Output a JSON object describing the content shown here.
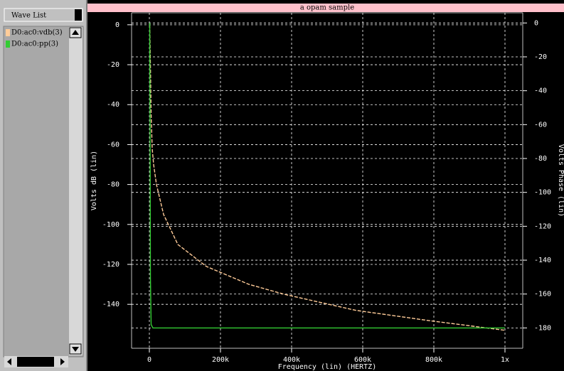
{
  "wave_list": {
    "title": "Wave List"
  },
  "chart_data": {
    "type": "line",
    "title": "a opam sample",
    "x_label": "Frequency (lin) (HERTZ)",
    "y_label": "Volts dB (lin)",
    "y2_label": "Volts Phase (lin)",
    "xlim": [
      -50000,
      1050000
    ],
    "xticks": [
      0,
      {
        "value": 200000,
        "label": "200k"
      },
      {
        "value": 400000,
        "label": "400k"
      },
      {
        "value": 600000,
        "label": "600k"
      },
      {
        "value": 800000,
        "label": "800k"
      },
      {
        "value": 1000000,
        "label": "1x"
      }
    ],
    "ylim": [
      -162,
      6
    ],
    "yticks": [
      0,
      -20,
      -40,
      -60,
      -80,
      -100,
      -120,
      -140
    ],
    "y2lim": [
      -192,
      6
    ],
    "y2ticks": [
      0,
      -20,
      -40,
      -60,
      -80,
      -100,
      -120,
      -140,
      -160,
      -180
    ],
    "grid": true,
    "series": [
      {
        "name": "D0:ac0:vdb(3)",
        "color": "#ffcc99",
        "x": [
          1000,
          3000,
          5000,
          8000,
          12000,
          20000,
          40000,
          80000,
          160000,
          280000,
          380000,
          580000,
          780000,
          1000000
        ],
        "values": [
          0,
          -20,
          -45,
          -62,
          -70,
          -80,
          -95,
          -110,
          -121,
          -130,
          -135,
          -143,
          -148,
          -153
        ]
      },
      {
        "name": "D0:ac0:pp(3)",
        "color": "#33cc33",
        "axis": "y2",
        "x": [
          1000,
          2000,
          3000,
          5000,
          10000,
          100000,
          1000000
        ],
        "values": [
          0,
          -60,
          -150,
          -178,
          -180,
          -180,
          -180
        ]
      }
    ]
  }
}
